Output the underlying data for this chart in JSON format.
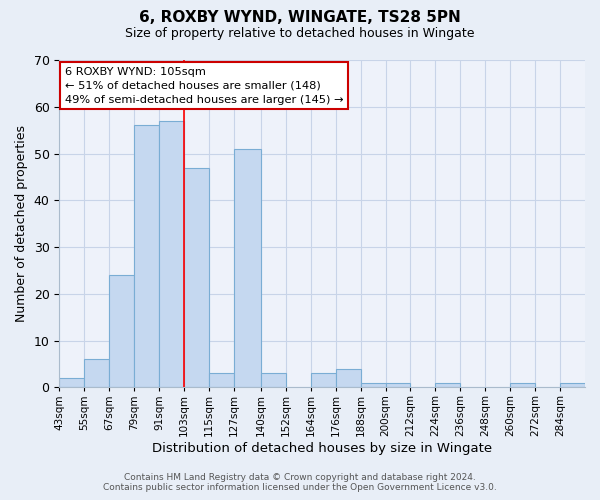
{
  "title": "6, ROXBY WYND, WINGATE, TS28 5PN",
  "subtitle": "Size of property relative to detached houses in Wingate",
  "xlabel": "Distribution of detached houses by size in Wingate",
  "ylabel": "Number of detached properties",
  "footer_line1": "Contains HM Land Registry data © Crown copyright and database right 2024.",
  "footer_line2": "Contains public sector information licensed under the Open Government Licence v3.0.",
  "annotation_line1": "6 ROXBY WYND: 105sqm",
  "annotation_line2": "← 51% of detached houses are smaller (148)",
  "annotation_line3": "49% of semi-detached houses are larger (145) →",
  "bar_edges": [
    43,
    55,
    67,
    79,
    91,
    103,
    115,
    127,
    140,
    152,
    164,
    176,
    188,
    200,
    212,
    224,
    236,
    248,
    260,
    272,
    284,
    296
  ],
  "bar_heights": [
    2,
    6,
    24,
    56,
    57,
    47,
    3,
    51,
    3,
    0,
    3,
    4,
    1,
    1,
    0,
    1,
    0,
    0,
    1,
    0,
    1
  ],
  "bar_color": "#c5d8f0",
  "bar_edgecolor": "#7aadd4",
  "vline_x": 103,
  "vline_color": "red",
  "ylim": [
    0,
    70
  ],
  "yticks": [
    0,
    10,
    20,
    30,
    40,
    50,
    60,
    70
  ],
  "bg_color": "#e8eef7",
  "plot_bg_color": "#eef2fa",
  "grid_color": "#c8d4e8",
  "annotation_box_edgecolor": "#cc0000",
  "annotation_box_facecolor": "#ffffff",
  "tick_label_fontsize": 7.5,
  "ylabel_fontsize": 9,
  "xlabel_fontsize": 9.5
}
